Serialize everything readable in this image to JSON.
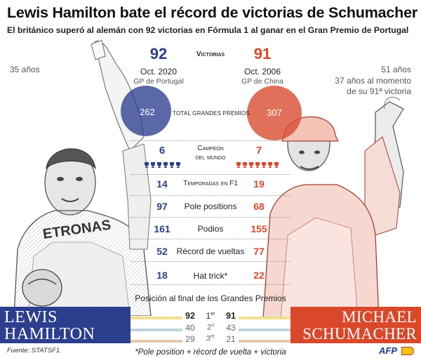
{
  "title": "Lewis Hamilton bate el récord de victorias de Schumacher",
  "subtitle": "El británico superó al alemán con 92 victorias en Fórmula 1 al ganar en el Gran Premio de Portugal",
  "hamilton": {
    "age": "35 años",
    "wins": "92",
    "date": "Oct. 2020",
    "gp": "GP de Portugal",
    "total_gp": "262",
    "name_line1": "Lewis",
    "name_line2": "Hamilton",
    "color": "#2c3e8e"
  },
  "schumacher": {
    "age": "51 años",
    "age_note_1": "37 años al momento",
    "age_note_2": "de su 91ª victoria",
    "wins": "91",
    "date": "Oct. 2006",
    "gp": "GP de China",
    "total_gp": "307",
    "name_line1": "Michael",
    "name_line2": "Schumacher",
    "color": "#d9482b"
  },
  "labels": {
    "victorias": "Victorias",
    "total_gp": "Total Grandes Premios",
    "campeon_1": "Campeón",
    "campeon_2": "del mundo",
    "position_title": "Posición al final de los Grandes Premios",
    "footnote": "*Pole position + récord de vuelta + victoria",
    "source": "Fuente: STATSF1",
    "agency": "AFP"
  },
  "stats": [
    {
      "label": "Campeón del mundo",
      "left": "6",
      "right": "7"
    },
    {
      "label": "Temporadas en F1",
      "left": "14",
      "right": "19"
    },
    {
      "label": "Pole positions",
      "left": "97",
      "right": "68"
    },
    {
      "label": "Podios",
      "left": "161",
      "right": "155"
    },
    {
      "label": "Récord de vueltas",
      "left": "52",
      "right": "77"
    },
    {
      "label": "Hat trick*",
      "left": "18",
      "right": "22"
    }
  ],
  "positions": [
    {
      "place": "1",
      "suffix": "er",
      "left": "92",
      "right": "91",
      "color": "#f3e08a"
    },
    {
      "place": "2",
      "suffix": "o",
      "left": "40",
      "right": "43",
      "color": "#bcd3dc"
    },
    {
      "place": "3",
      "suffix": "er",
      "left": "29",
      "right": "21",
      "color": "#e3c8a8"
    }
  ],
  "trophies": {
    "left": 6,
    "right": 7
  }
}
